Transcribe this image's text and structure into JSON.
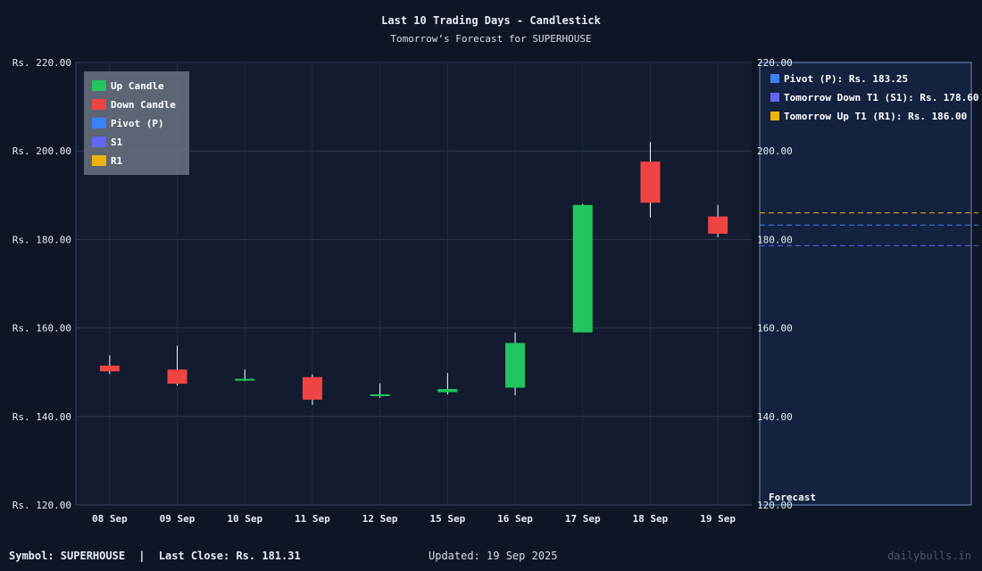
{
  "title": "Last 10 Trading Days - Candlestick",
  "subtitle": "Tomorrow’s Forecast for SUPERHOUSE",
  "footer": {
    "symbol": "Symbol: SUPERHOUSE",
    "separator": "|",
    "last_close": "Last Close: Rs. 181.31",
    "updated": "Updated: 19 Sep 2025",
    "brand": "dailybulls.in"
  },
  "colors": {
    "up": "#22c55e",
    "down": "#ef4444",
    "pivot": "#3b82f6",
    "s1": "#6366f1",
    "r1": "#eab308",
    "forecast_pivot_line": "#3b82f6",
    "forecast_s1_line": "#6366f1",
    "forecast_r1_line": "#eab308"
  },
  "chart_data": {
    "type": "candlestick",
    "y_tick_labels": [
      "Rs. 220.00",
      "Rs. 200.00",
      "Rs. 180.00",
      "Rs. 160.00",
      "Rs. 140.00",
      "Rs. 120.00"
    ],
    "ylim": [
      120,
      220
    ],
    "y_ticks": [
      220,
      200,
      180,
      160,
      140,
      120
    ],
    "forecast_tick_labels": [
      "220.00",
      "200.00",
      "180.00",
      "160.00",
      "140.00",
      "120.00"
    ],
    "grid": true,
    "categories": [
      "08 Sep",
      "09 Sep",
      "10 Sep",
      "11 Sep",
      "12 Sep",
      "15 Sep",
      "16 Sep",
      "17 Sep",
      "18 Sep",
      "19 Sep"
    ],
    "candles": [
      {
        "open": 151.5,
        "high": 153.8,
        "low": 149.6,
        "close": 150.2
      },
      {
        "open": 150.6,
        "high": 156.0,
        "low": 147.0,
        "close": 147.4
      },
      {
        "open": 148.1,
        "high": 150.6,
        "low": 148.0,
        "close": 148.5
      },
      {
        "open": 148.9,
        "high": 149.5,
        "low": 142.6,
        "close": 143.8
      },
      {
        "open": 144.6,
        "high": 147.5,
        "low": 144.2,
        "close": 145.0
      },
      {
        "open": 145.5,
        "high": 149.8,
        "low": 145.0,
        "close": 146.2
      },
      {
        "open": 146.5,
        "high": 159.0,
        "low": 144.8,
        "close": 156.6
      },
      {
        "open": 159.0,
        "high": 188.0,
        "low": 159.0,
        "close": 187.8
      },
      {
        "open": 197.6,
        "high": 202.0,
        "low": 185.0,
        "close": 188.3
      },
      {
        "open": 185.2,
        "high": 187.8,
        "low": 180.5,
        "close": 181.3
      }
    ],
    "legend": {
      "placement": "top-left",
      "entries": [
        {
          "label": "Up Candle",
          "color_key": "up"
        },
        {
          "label": "Down Candle",
          "color_key": "down"
        },
        {
          "label": "Pivot (P)",
          "color_key": "pivot"
        },
        {
          "label": "S1",
          "color_key": "s1"
        },
        {
          "label": "R1",
          "color_key": "r1"
        }
      ]
    },
    "forecast": {
      "label": "Forecast",
      "pivot": 183.25,
      "s1": 178.6,
      "r1": 186.0,
      "legend": [
        {
          "label": "Pivot (P): Rs. 183.25",
          "color_key": "pivot"
        },
        {
          "label": "Tomorrow Down T1 (S1): Rs. 178.60",
          "color_key": "s1"
        },
        {
          "label": "Tomorrow Up T1 (R1): Rs. 186.00",
          "color_key": "r1"
        }
      ]
    }
  }
}
